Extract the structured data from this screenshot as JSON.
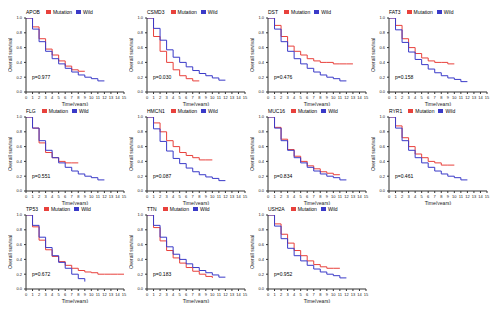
{
  "chart_data": [
    {
      "type": "line",
      "title": "APOB",
      "annotation": "p=0.977",
      "x_label": "Time(years)",
      "y_label": "Overall survival",
      "legend": "top",
      "xlim": [
        0,
        15
      ],
      "ylim": [
        0,
        1
      ],
      "xticks": [
        0,
        1,
        2,
        3,
        4,
        5,
        6,
        7,
        8,
        9,
        10,
        11,
        12,
        13,
        14,
        15
      ],
      "yticks": [
        {
          "value": 0,
          "label": "0.0"
        },
        0.2,
        0.4,
        0.6,
        0.8,
        {
          "value": 1,
          "label": "1.0"
        }
      ],
      "series": [
        {
          "name": "Mutation",
          "color": "#e8413c",
          "x": [
            0,
            1,
            2,
            3,
            4,
            5,
            6,
            7,
            8,
            9
          ],
          "values": [
            1,
            0.88,
            0.72,
            0.58,
            0.5,
            0.42,
            0.35,
            0.3,
            0.28,
            0.28
          ]
        },
        {
          "name": "Wild",
          "color": "#3a3ac8",
          "x": [
            0,
            1,
            2,
            3,
            4,
            5,
            6,
            7,
            8,
            9,
            10,
            11,
            12
          ],
          "values": [
            1,
            0.85,
            0.68,
            0.55,
            0.45,
            0.38,
            0.32,
            0.27,
            0.23,
            0.2,
            0.18,
            0.15,
            0.15
          ]
        }
      ]
    },
    {
      "type": "line",
      "title": "CSMD3",
      "annotation": "p=0.030",
      "x_label": "Time(years)",
      "y_label": "Overall survival",
      "legend": "top",
      "xlim": [
        0,
        15
      ],
      "ylim": [
        0,
        1
      ],
      "xticks": [
        0,
        1,
        2,
        3,
        4,
        5,
        6,
        7,
        8,
        9,
        10,
        11,
        12,
        13,
        14,
        15
      ],
      "yticks": [
        {
          "value": 0,
          "label": "0.0"
        },
        0.2,
        0.4,
        0.6,
        0.8,
        {
          "value": 1,
          "label": "1.0"
        }
      ],
      "series": [
        {
          "name": "Mutation",
          "color": "#e8413c",
          "x": [
            0,
            1,
            2,
            3,
            4,
            5,
            6,
            7,
            8
          ],
          "values": [
            1,
            0.75,
            0.55,
            0.4,
            0.3,
            0.22,
            0.18,
            0.15,
            0.15
          ]
        },
        {
          "name": "Wild",
          "color": "#3a3ac8",
          "x": [
            0,
            1,
            2,
            3,
            4,
            5,
            6,
            7,
            8,
            9,
            10,
            11,
            12
          ],
          "values": [
            1,
            0.86,
            0.7,
            0.57,
            0.47,
            0.4,
            0.34,
            0.29,
            0.25,
            0.22,
            0.19,
            0.16,
            0.16
          ]
        }
      ]
    },
    {
      "type": "line",
      "title": "DST",
      "annotation": "p=0.476",
      "x_label": "Time(years)",
      "y_label": "Overall survival",
      "legend": "top",
      "xlim": [
        0,
        15
      ],
      "ylim": [
        0,
        1
      ],
      "xticks": [
        0,
        1,
        2,
        3,
        4,
        5,
        6,
        7,
        8,
        9,
        10,
        11,
        12,
        13,
        14,
        15
      ],
      "yticks": [
        {
          "value": 0,
          "label": "0.0"
        },
        0.2,
        0.4,
        0.6,
        0.8,
        {
          "value": 1,
          "label": "1.0"
        }
      ],
      "series": [
        {
          "name": "Mutation",
          "color": "#e8413c",
          "x": [
            0,
            1,
            2,
            3,
            4,
            5,
            6,
            7,
            8,
            9,
            10,
            11,
            12,
            13
          ],
          "values": [
            1,
            0.9,
            0.75,
            0.62,
            0.55,
            0.5,
            0.45,
            0.42,
            0.4,
            0.4,
            0.38,
            0.38,
            0.38,
            0.38
          ]
        },
        {
          "name": "Wild",
          "color": "#3a3ac8",
          "x": [
            0,
            1,
            2,
            3,
            4,
            5,
            6,
            7,
            8,
            9,
            10,
            11,
            12
          ],
          "values": [
            1,
            0.85,
            0.68,
            0.55,
            0.45,
            0.38,
            0.32,
            0.27,
            0.23,
            0.2,
            0.18,
            0.15,
            0.15
          ]
        }
      ]
    },
    {
      "type": "line",
      "title": "FAT3",
      "annotation": "p=0.158",
      "x_label": "Time(years)",
      "y_label": "Overall survival",
      "legend": "top",
      "xlim": [
        0,
        15
      ],
      "ylim": [
        0,
        1
      ],
      "xticks": [
        0,
        1,
        2,
        3,
        4,
        5,
        6,
        7,
        8,
        9,
        10,
        11,
        12,
        13,
        14,
        15
      ],
      "yticks": [
        {
          "value": 0,
          "label": "0.0"
        },
        0.2,
        0.4,
        0.6,
        0.8,
        {
          "value": 1,
          "label": "1.0"
        }
      ],
      "series": [
        {
          "name": "Mutation",
          "color": "#e8413c",
          "x": [
            0,
            1,
            2,
            3,
            4,
            5,
            6,
            7,
            8,
            9,
            10
          ],
          "values": [
            1,
            0.9,
            0.72,
            0.6,
            0.52,
            0.46,
            0.42,
            0.4,
            0.4,
            0.38,
            0.38
          ]
        },
        {
          "name": "Wild",
          "color": "#3a3ac8",
          "x": [
            0,
            1,
            2,
            3,
            4,
            5,
            6,
            7,
            8,
            9,
            10,
            11,
            12
          ],
          "values": [
            1,
            0.84,
            0.67,
            0.54,
            0.44,
            0.37,
            0.31,
            0.26,
            0.22,
            0.19,
            0.17,
            0.14,
            0.14
          ]
        }
      ]
    },
    {
      "type": "line",
      "title": "FLG",
      "annotation": "p=0.551",
      "x_label": "Time(years)",
      "y_label": "Overall survival",
      "legend": "top",
      "xlim": [
        0,
        15
      ],
      "ylim": [
        0,
        1
      ],
      "xticks": [
        0,
        1,
        2,
        3,
        4,
        5,
        6,
        7,
        8,
        9,
        10,
        11,
        12,
        13,
        14,
        15
      ],
      "yticks": [
        {
          "value": 0,
          "label": "0.0"
        },
        0.2,
        0.4,
        0.6,
        0.8,
        {
          "value": 1,
          "label": "1.0"
        }
      ],
      "series": [
        {
          "name": "Mutation",
          "color": "#e8413c",
          "x": [
            0,
            1,
            2,
            3,
            4,
            5,
            6,
            7,
            8
          ],
          "values": [
            1,
            0.85,
            0.65,
            0.52,
            0.45,
            0.4,
            0.38,
            0.38,
            0.38
          ]
        },
        {
          "name": "Wild",
          "color": "#3a3ac8",
          "x": [
            0,
            1,
            2,
            3,
            4,
            5,
            6,
            7,
            8,
            9,
            10,
            11,
            12
          ],
          "values": [
            1,
            0.85,
            0.68,
            0.55,
            0.45,
            0.38,
            0.32,
            0.27,
            0.23,
            0.2,
            0.18,
            0.15,
            0.15
          ]
        }
      ]
    },
    {
      "type": "line",
      "title": "HMCN1",
      "annotation": "p=0.087",
      "x_label": "Time(years)",
      "y_label": "Overall survival",
      "legend": "top",
      "xlim": [
        0,
        15
      ],
      "ylim": [
        0,
        1
      ],
      "xticks": [
        0,
        1,
        2,
        3,
        4,
        5,
        6,
        7,
        8,
        9,
        10,
        11,
        12,
        13,
        14,
        15
      ],
      "yticks": [
        {
          "value": 0,
          "label": "0.0"
        },
        0.2,
        0.4,
        0.6,
        0.8,
        {
          "value": 1,
          "label": "1.0"
        }
      ],
      "series": [
        {
          "name": "Mutation",
          "color": "#e8413c",
          "x": [
            0,
            1,
            2,
            3,
            4,
            5,
            6,
            7,
            8,
            9,
            10
          ],
          "values": [
            1,
            0.92,
            0.8,
            0.68,
            0.6,
            0.52,
            0.48,
            0.45,
            0.42,
            0.42,
            0.42
          ]
        },
        {
          "name": "Wild",
          "color": "#3a3ac8",
          "x": [
            0,
            1,
            2,
            3,
            4,
            5,
            6,
            7,
            8,
            9,
            10,
            11,
            12
          ],
          "values": [
            1,
            0.84,
            0.67,
            0.54,
            0.44,
            0.37,
            0.31,
            0.26,
            0.22,
            0.19,
            0.17,
            0.14,
            0.14
          ]
        }
      ]
    },
    {
      "type": "line",
      "title": "MUC16",
      "annotation": "p=0.834",
      "x_label": "Time(years)",
      "y_label": "Overall survival",
      "legend": "top",
      "xlim": [
        0,
        15
      ],
      "ylim": [
        0,
        1
      ],
      "xticks": [
        0,
        1,
        2,
        3,
        4,
        5,
        6,
        7,
        8,
        9,
        10,
        11,
        12,
        13,
        14,
        15
      ],
      "yticks": [
        {
          "value": 0,
          "label": "0.0"
        },
        0.2,
        0.4,
        0.6,
        0.8,
        {
          "value": 1,
          "label": "1.0"
        }
      ],
      "series": [
        {
          "name": "Mutation",
          "color": "#e8413c",
          "x": [
            0,
            1,
            2,
            3,
            4,
            5,
            6,
            7,
            8,
            9,
            10,
            11
          ],
          "values": [
            1,
            0.86,
            0.7,
            0.56,
            0.47,
            0.4,
            0.34,
            0.3,
            0.26,
            0.24,
            0.22,
            0.22
          ]
        },
        {
          "name": "Wild",
          "color": "#3a3ac8",
          "x": [
            0,
            1,
            2,
            3,
            4,
            5,
            6,
            7,
            8,
            9,
            10,
            11,
            12
          ],
          "values": [
            1,
            0.85,
            0.68,
            0.55,
            0.45,
            0.38,
            0.32,
            0.27,
            0.23,
            0.2,
            0.18,
            0.15,
            0.15
          ]
        }
      ]
    },
    {
      "type": "line",
      "title": "RYR1",
      "annotation": "p=0.461",
      "x_label": "Time(years)",
      "y_label": "Overall survival",
      "legend": "top",
      "xlim": [
        0,
        15
      ],
      "ylim": [
        0,
        1
      ],
      "xticks": [
        0,
        1,
        2,
        3,
        4,
        5,
        6,
        7,
        8,
        9,
        10,
        11,
        12,
        13,
        14,
        15
      ],
      "yticks": [
        {
          "value": 0,
          "label": "0.0"
        },
        0.2,
        0.4,
        0.6,
        0.8,
        {
          "value": 1,
          "label": "1.0"
        }
      ],
      "series": [
        {
          "name": "Mutation",
          "color": "#e8413c",
          "x": [
            0,
            1,
            2,
            3,
            4,
            5,
            6,
            7,
            8,
            9,
            10
          ],
          "values": [
            1,
            0.88,
            0.72,
            0.6,
            0.5,
            0.45,
            0.4,
            0.38,
            0.35,
            0.35,
            0.35
          ]
        },
        {
          "name": "Wild",
          "color": "#3a3ac8",
          "x": [
            0,
            1,
            2,
            3,
            4,
            5,
            6,
            7,
            8,
            9,
            10,
            11,
            12
          ],
          "values": [
            1,
            0.85,
            0.68,
            0.55,
            0.45,
            0.38,
            0.32,
            0.27,
            0.23,
            0.2,
            0.18,
            0.15,
            0.15
          ]
        }
      ]
    },
    {
      "type": "line",
      "title": "TP53",
      "annotation": "p=0.672",
      "x_label": "Time(years)",
      "y_label": "Overall survival",
      "legend": "top",
      "xlim": [
        0,
        15
      ],
      "ylim": [
        0,
        1
      ],
      "xticks": [
        0,
        1,
        2,
        3,
        4,
        5,
        6,
        7,
        8,
        9,
        10,
        11,
        12,
        13,
        14,
        15
      ],
      "yticks": [
        {
          "value": 0,
          "label": "0.0"
        },
        0.2,
        0.4,
        0.6,
        0.8,
        {
          "value": 1,
          "label": "1.0"
        }
      ],
      "series": [
        {
          "name": "Mutation",
          "color": "#e8413c",
          "x": [
            0,
            1,
            2,
            3,
            4,
            5,
            6,
            7,
            8,
            9,
            10,
            11,
            12,
            13,
            14,
            15
          ],
          "values": [
            1,
            0.84,
            0.66,
            0.53,
            0.44,
            0.37,
            0.32,
            0.28,
            0.25,
            0.23,
            0.22,
            0.2,
            0.2,
            0.2,
            0.2,
            0.2
          ]
        },
        {
          "name": "Wild",
          "color": "#3a3ac8",
          "x": [
            0,
            1,
            2,
            3,
            4,
            5,
            6,
            7,
            8,
            9
          ],
          "values": [
            1,
            0.86,
            0.7,
            0.56,
            0.45,
            0.36,
            0.28,
            0.2,
            0.14,
            0.1
          ]
        }
      ]
    },
    {
      "type": "line",
      "title": "TTN",
      "annotation": "p=0.183",
      "x_label": "Time(years)",
      "y_label": "Overall survival",
      "legend": "top",
      "xlim": [
        0,
        15
      ],
      "ylim": [
        0,
        1
      ],
      "xticks": [
        0,
        1,
        2,
        3,
        4,
        5,
        6,
        7,
        8,
        9,
        10,
        11,
        12,
        13,
        14,
        15
      ],
      "yticks": [
        {
          "value": 0,
          "label": "0.0"
        },
        0.2,
        0.4,
        0.6,
        0.8,
        {
          "value": 1,
          "label": "1.0"
        }
      ],
      "series": [
        {
          "name": "Mutation",
          "color": "#e8413c",
          "x": [
            0,
            1,
            2,
            3,
            4,
            5,
            6,
            7,
            8,
            9,
            10
          ],
          "values": [
            1,
            0.83,
            0.65,
            0.52,
            0.42,
            0.35,
            0.29,
            0.24,
            0.2,
            0.17,
            0.15
          ]
        },
        {
          "name": "Wild",
          "color": "#3a3ac8",
          "x": [
            0,
            1,
            2,
            3,
            4,
            5,
            6,
            7,
            8,
            9,
            10,
            11,
            12
          ],
          "values": [
            1,
            0.86,
            0.7,
            0.57,
            0.47,
            0.4,
            0.34,
            0.29,
            0.25,
            0.22,
            0.19,
            0.16,
            0.16
          ]
        }
      ]
    },
    {
      "type": "line",
      "title": "USH2A",
      "annotation": "p=0.952",
      "x_label": "Time(years)",
      "y_label": "Overall survival",
      "legend": "top",
      "xlim": [
        0,
        15
      ],
      "ylim": [
        0,
        1
      ],
      "xticks": [
        0,
        1,
        2,
        3,
        4,
        5,
        6,
        7,
        8,
        9,
        10,
        11,
        12,
        13,
        14,
        15
      ],
      "yticks": [
        {
          "value": 0,
          "label": "0.0"
        },
        0.2,
        0.4,
        0.6,
        0.8,
        {
          "value": 1,
          "label": "1.0"
        }
      ],
      "series": [
        {
          "name": "Mutation",
          "color": "#e8413c",
          "x": [
            0,
            1,
            2,
            3,
            4,
            5,
            6,
            7,
            8,
            9,
            10,
            11
          ],
          "values": [
            1,
            0.88,
            0.74,
            0.62,
            0.52,
            0.45,
            0.38,
            0.33,
            0.3,
            0.28,
            0.28,
            0.28
          ]
        },
        {
          "name": "Wild",
          "color": "#3a3ac8",
          "x": [
            0,
            1,
            2,
            3,
            4,
            5,
            6,
            7,
            8,
            9,
            10,
            11,
            12
          ],
          "values": [
            1,
            0.85,
            0.68,
            0.55,
            0.45,
            0.38,
            0.32,
            0.27,
            0.23,
            0.2,
            0.18,
            0.15,
            0.15
          ]
        }
      ]
    }
  ]
}
